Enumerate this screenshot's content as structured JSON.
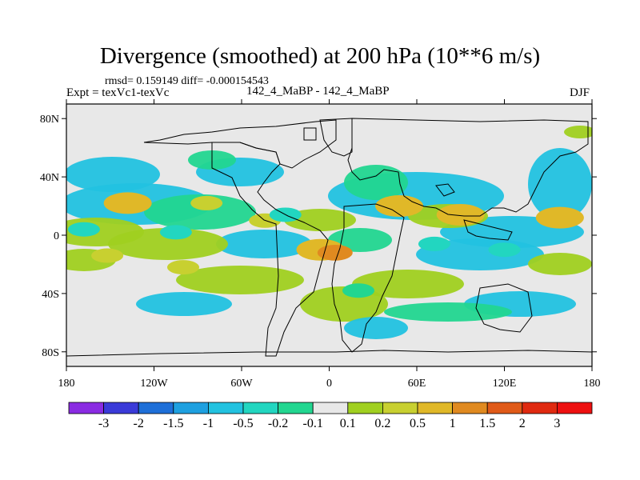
{
  "title": "Divergence (smoothed) at 200 hPa (10**6 m/s)",
  "stats": "rmsd= 0.159149 diff= -0.000154543",
  "experiment": "Expt = texVc1-texVc",
  "diff_label": "142_4_MaBP - 142_4_MaBP",
  "season": "DJF",
  "colors": {
    "land_outline": "#000000",
    "background": "#e8e8e8"
  },
  "map": {
    "projection": "cylindrical equidistant",
    "lon_range": [
      -180,
      180
    ],
    "lat_range": [
      -90,
      90
    ],
    "x_tick_labels": [
      "180",
      "120W",
      "60W",
      "0",
      "60E",
      "120E",
      "180"
    ],
    "x_tick_values": [
      -180,
      -120,
      -60,
      0,
      60,
      120,
      180
    ],
    "y_tick_labels": [
      "80N",
      "40N",
      "0",
      "40S",
      "80S"
    ],
    "y_tick_values": [
      80,
      40,
      0,
      -40,
      -80
    ]
  },
  "colorbar": {
    "labels": [
      "-3",
      "-2",
      "-1.5",
      "-1",
      "-0.5",
      "-0.2",
      "-0.1",
      "0.1",
      "0.2",
      "0.5",
      "1",
      "1.5",
      "2",
      "3"
    ],
    "colors": [
      "#8a2be2",
      "#3a3ad8",
      "#1e6fd8",
      "#1ea0e0",
      "#22c2e0",
      "#22d6c0",
      "#22d690",
      "#e8e8e8",
      "#a0d020",
      "#c8d030",
      "#e0b828",
      "#e08a20",
      "#e05a18",
      "#e02a10",
      "#ee1010"
    ]
  },
  "chart_data": {
    "type": "heatmap",
    "title": "Divergence (smoothed) at 200 hPa (10**6 m/s)",
    "units": "10**6 m/s",
    "levels": [
      -3,
      -2,
      -1.5,
      -1,
      -0.5,
      -0.2,
      -0.1,
      0.1,
      0.2,
      0.5,
      1,
      1.5,
      2,
      3
    ],
    "features": [
      {
        "lon": -138,
        "lat": 22,
        "value": 0.5
      },
      {
        "lon": -84,
        "lat": 22,
        "value": 0.3
      },
      {
        "lon": -44,
        "lat": 10,
        "value": 0.3
      },
      {
        "lon": -6,
        "lat": -10,
        "value": 0.5
      },
      {
        "lon": 4,
        "lat": -12,
        "value": 1.0
      },
      {
        "lon": 48,
        "lat": 20,
        "value": 0.5
      },
      {
        "lon": 90,
        "lat": 14,
        "value": 0.5
      },
      {
        "lon": 158,
        "lat": 12,
        "value": 0.5
      },
      {
        "lon": -100,
        "lat": -22,
        "value": 0.3
      },
      {
        "lon": -152,
        "lat": -14,
        "value": 0.3
      },
      {
        "lon": -168,
        "lat": 4,
        "value": -0.3
      },
      {
        "lon": -105,
        "lat": 2,
        "value": -0.3
      },
      {
        "lon": -30,
        "lat": 14,
        "value": -0.3
      },
      {
        "lon": 72,
        "lat": -6,
        "value": -0.3
      },
      {
        "lon": 120,
        "lat": -10,
        "value": -0.3
      },
      {
        "lon": 20,
        "lat": -38,
        "value": -0.2
      }
    ]
  }
}
